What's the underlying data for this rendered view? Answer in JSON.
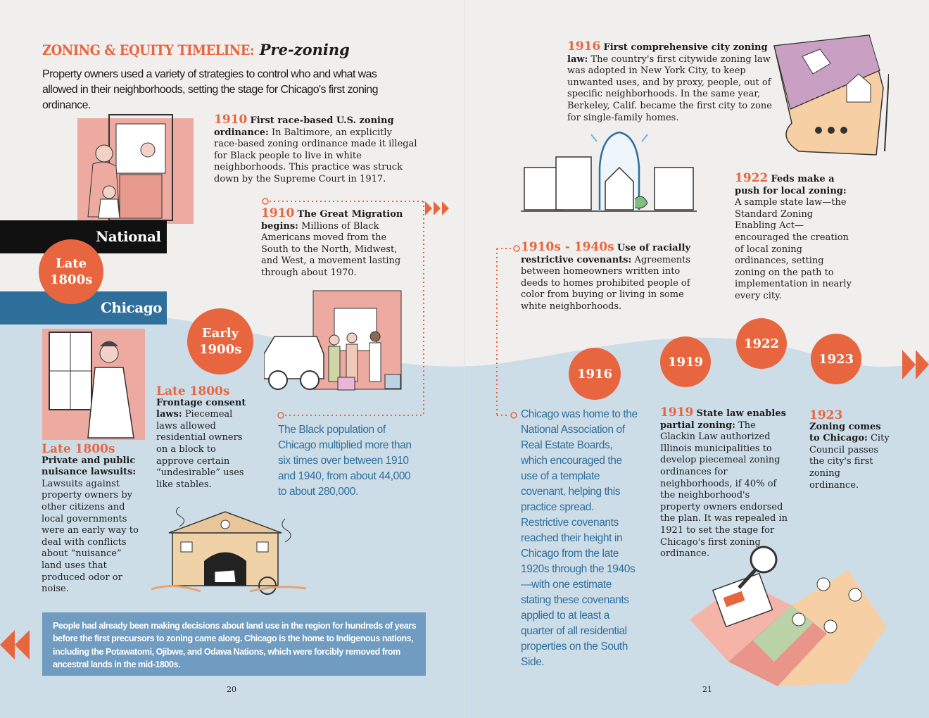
{
  "header": {
    "title_main": "ZONING & EQUITY TIMELINE:",
    "title_sub": "Pre-zoning",
    "intro": "Property owners used a variety of strategies to control who and what was allowed in their neighborhoods, setting the stage for Chicago's first zoning ordinance."
  },
  "bands": {
    "national": "National",
    "chicago": "Chicago"
  },
  "circles": {
    "late1800s": "Late 1800s",
    "early1900s": "Early 1900s",
    "y1916": "1916",
    "y1919": "1919",
    "y1922": "1922",
    "y1923": "1923"
  },
  "entries": {
    "e1910a": {
      "year": "1910",
      "title": "First race-based U.S. zoning ordinance:",
      "body": "In Baltimore, an explicitly race-based zoning ordinance made it illegal for Black people to live in white neighborhoods. This practice was struck down by the Supreme Court in 1917."
    },
    "e1910b": {
      "year": "1910",
      "title": "The Great Migration begins:",
      "body": "Millions of Black Americans moved from the South to the North, Midwest, and West, a movement lasting through about 1970."
    },
    "e1916": {
      "year": "1916",
      "title": "First comprehensive city zoning law:",
      "body": "The country's first citywide zoning law was adopted in New York City, to keep unwanted uses, and by proxy, people, out of specific neighborhoods. In the same year, Berkeley, Calif. became the first city to zone for single-family homes."
    },
    "e1910s": {
      "year": "1910s - 1940s",
      "title": "Use of racially restrictive covenants:",
      "body": "Agreements between homeowners written into deeds to homes prohibited people of color from buying or living in some white neighborhoods."
    },
    "e1922": {
      "year": "1922",
      "title": "Feds make a push for local zoning:",
      "body": "A sample state law—the Standard Zoning Enabling Act—encouraged the creation of local zoning ordinances, setting zoning on the path to implementation in nearly every city."
    },
    "eLate1": {
      "year": "Late 1800s",
      "title": "Private and public nuisance lawsuits:",
      "body": "Lawsuits against property owners by other citizens and local governments were an early way to deal with conflicts about “nuisance” land uses that produced odor or noise."
    },
    "eLate2": {
      "year": "Late 1800s",
      "title": "Frontage consent laws:",
      "body": "Piecemeal laws allowed residential owners on a block to approve certain “undesirable” uses like stables."
    },
    "e1919": {
      "year": "1919",
      "title": "State law enables partial zoning:",
      "body": "The Glackin Law authorized Illinois municipalities to develop piecemeal zoning ordinances for neighborhoods, if 40% of the neighborhood's property owners endorsed the plan. It was repealed in 1921 to set the stage for Chicago's first zoning ordinance."
    },
    "e1923": {
      "year": "1923",
      "title": "Zoning comes to Chicago:",
      "body": "City Council passes the city's first zoning ordinance."
    }
  },
  "blue_notes": {
    "migration": "The Black population of Chicago multiplied more than six times over between 1910 and 1940, from about 44,000 to about 280,000.",
    "covenants": "Chicago was home to the National Association of Real Estate Boards, which encouraged the use of a template covenant, helping this practice spread. Restrictive covenants reached their height in Chicago from the late 1920s through the 1940s—with one estimate stating these covenants applied to at least a quarter of all residential properties on the South Side."
  },
  "footer_note": "People had already been making decisions about land use in the region for hundreds of years before the first precursors to zoning came along. Chicago is the home to Indigenous nations, including the Potawatomi, Ojibwe, and Odawa Nations, which were forcibly removed from ancestral lands in the mid-1800s.",
  "pages": {
    "left": "20",
    "right": "21"
  },
  "colors": {
    "accent": "#e8663f",
    "blue": "#2f6f9c",
    "band_blue": "#2f6f9c",
    "light_blue": "#cddde8",
    "note_bg": "#6f9cc0"
  },
  "icons": [
    "mother-child-door-illustration",
    "woman-window-illustration",
    "stable-illustration",
    "migration-car-illustration",
    "house-bell-jar-illustration",
    "zoning-map-illustration",
    "magnifier-map-illustration",
    "double-arrow-right-icon",
    "double-arrow-left-icon",
    "triple-arrow-right-icon"
  ]
}
